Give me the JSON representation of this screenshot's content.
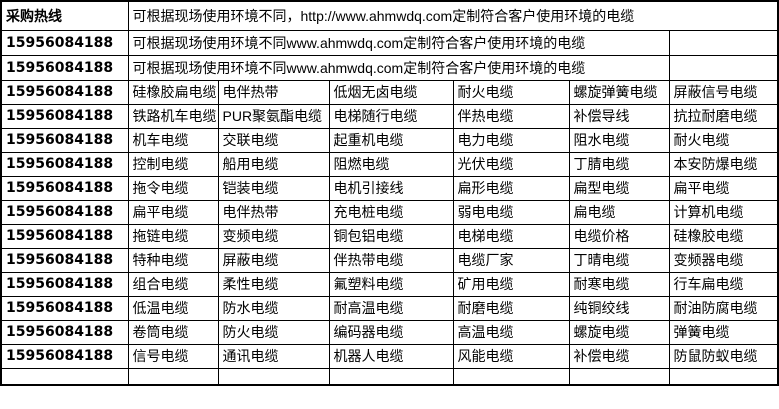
{
  "colors": {
    "accent_red": "#ff0000",
    "border": "#000000",
    "background": "#ffffff",
    "text": "#000000"
  },
  "banner": {
    "hotline_label": "采购热线",
    "row1_text": "可根据现场使用环境不同，http://www.ahmwdq.com定制符合客户使用环境的电缆",
    "row2_phone": "15956084188",
    "row2_text": "可根据现场使用环境不同www.ahmwdq.com定制符合客户使用环境的电缆",
    "row3_phone": "15956084188",
    "row3_text": "可根据现场使用环境不同www.ahmwdq.com定制符合客户使用环境的电缆"
  },
  "products": [
    {
      "phone": "15956084188",
      "cables": [
        "硅橡胶扁电缆",
        "电伴热带",
        "低烟无卤电缆",
        "耐火电缆",
        "螺旋弹簧电缆",
        "屏蔽信号电缆"
      ]
    },
    {
      "phone": "15956084188",
      "cables": [
        "铁路机车电缆",
        "PUR聚氨酯电缆",
        "电梯随行电缆",
        "伴热电缆",
        "补偿导线",
        "抗拉耐磨电缆"
      ]
    },
    {
      "phone": "15956084188",
      "cables": [
        "机车电缆",
        "交联电缆",
        "起重机电缆",
        "电力电缆",
        "阻水电缆",
        "耐火电缆"
      ]
    },
    {
      "phone": "15956084188",
      "cables": [
        "控制电缆",
        "船用电缆",
        "阻燃电缆",
        "光伏电缆",
        "丁腈电缆",
        "本安防爆电缆"
      ]
    },
    {
      "phone": "15956084188",
      "cables": [
        "拖令电缆",
        "铠装电缆",
        "电机引接线",
        "扁形电缆",
        "扁型电缆",
        "扁平电缆"
      ]
    },
    {
      "phone": "15956084188",
      "cables": [
        "扁平电缆",
        "电伴热带",
        "充电桩电缆",
        "弱电电缆",
        "扁电缆",
        "计算机电缆"
      ]
    },
    {
      "phone": "15956084188",
      "cables": [
        "拖链电缆",
        "变频电缆",
        "铜包铝电缆",
        "电梯电缆",
        "电缆价格",
        "硅橡胶电缆"
      ]
    },
    {
      "phone": "15956084188",
      "cables": [
        "特种电缆",
        "屏蔽电缆",
        "伴热带电缆",
        "电缆厂家",
        "丁晴电缆",
        "变频器电缆"
      ]
    },
    {
      "phone": "15956084188",
      "cables": [
        "组合电缆",
        "柔性电缆",
        "氟塑料电缆",
        "矿用电缆",
        "耐寒电缆",
        "行车扁电缆"
      ]
    },
    {
      "phone": "15956084188",
      "cables": [
        "低温电缆",
        "防水电缆",
        "耐高温电缆",
        "耐磨电缆",
        "纯铜绞线",
        "耐油防腐电缆"
      ]
    },
    {
      "phone": "15956084188",
      "cables": [
        "卷筒电缆",
        "防火电缆",
        "编码器电缆",
        "高温电缆",
        "螺旋电缆",
        "弹簧电缆"
      ]
    },
    {
      "phone": "15956084188",
      "cables": [
        "信号电缆",
        "通讯电缆",
        "机器人电缆",
        "风能电缆",
        "补偿电缆",
        "防鼠防蚁电缆"
      ]
    }
  ]
}
